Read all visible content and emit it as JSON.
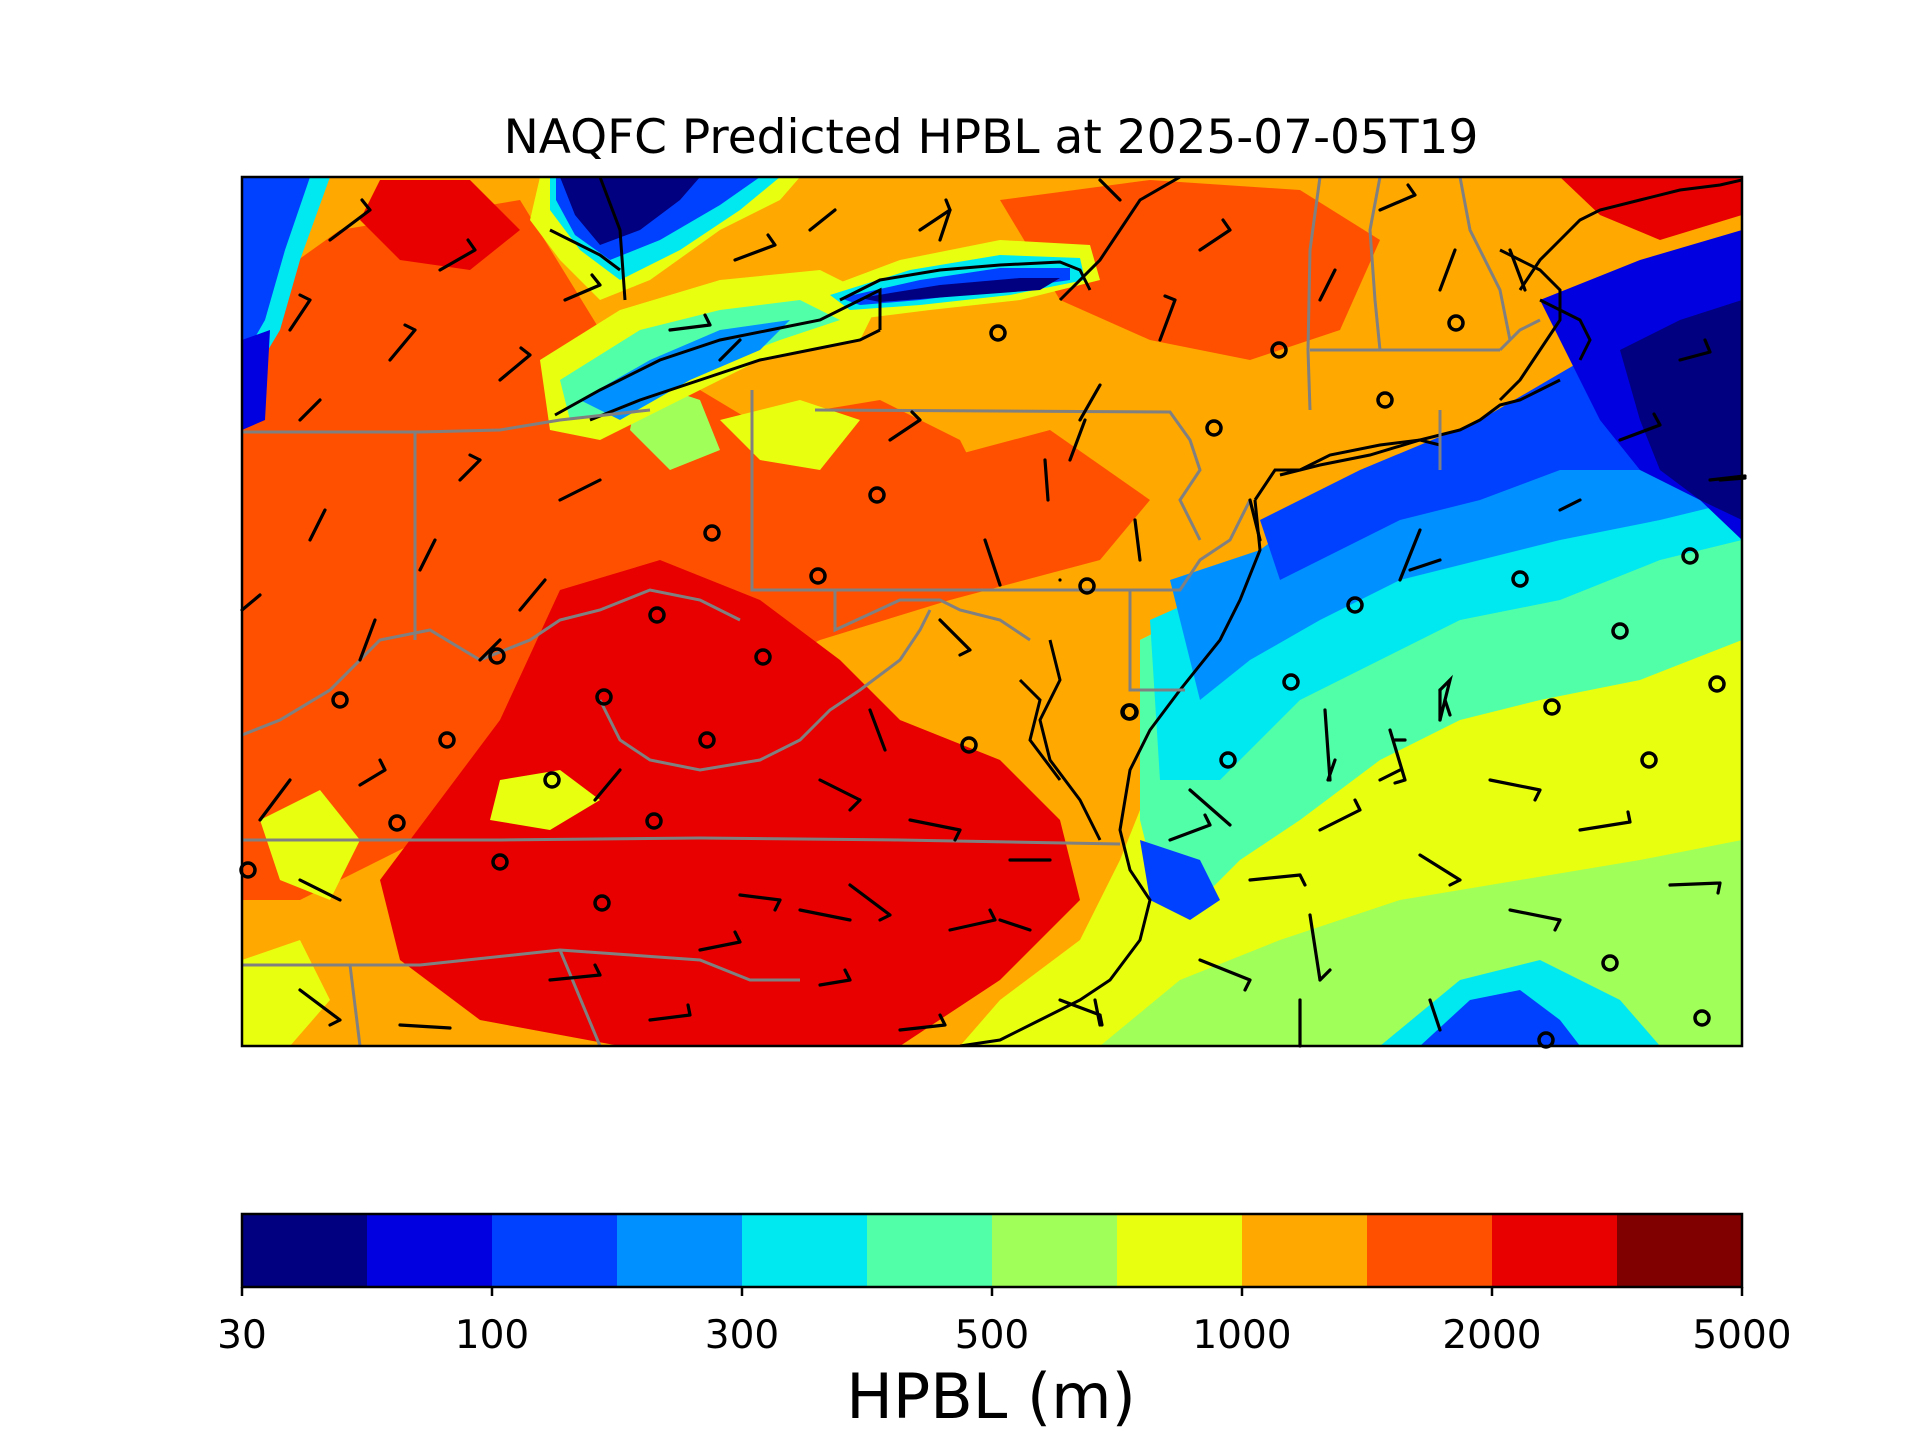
{
  "title": "NAQFC Predicted HPBL at 2025-07-05T19",
  "colorbar": {
    "label": "HPBL (m)",
    "ticks": [
      "30",
      "100",
      "300",
      "500",
      "1000",
      "2000",
      "5000"
    ],
    "colors": [
      "#000080",
      "#0000e0",
      "#0040ff",
      "#0090ff",
      "#00e8f0",
      "#50ffa8",
      "#a0ff58",
      "#e8ff10",
      "#ffa800",
      "#ff5000",
      "#e80000",
      "#800000"
    ]
  },
  "map": {
    "field": "HPBL",
    "land_border_color": "#000000",
    "state_border_color": "#808080",
    "symbols": [
      "wind-barbs",
      "calm-circles"
    ]
  }
}
